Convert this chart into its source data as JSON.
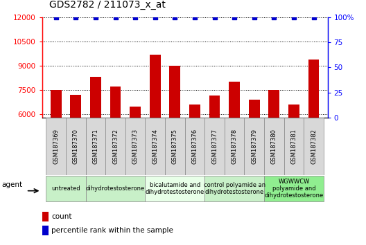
{
  "title": "GDS2782 / 211073_x_at",
  "samples": [
    "GSM187369",
    "GSM187370",
    "GSM187371",
    "GSM187372",
    "GSM187373",
    "GSM187374",
    "GSM187375",
    "GSM187376",
    "GSM187377",
    "GSM187378",
    "GSM187379",
    "GSM187380",
    "GSM187381",
    "GSM187382"
  ],
  "counts": [
    7500,
    7200,
    8300,
    7700,
    6500,
    9700,
    9000,
    6600,
    7150,
    8000,
    6900,
    7500,
    6600,
    9400
  ],
  "percentiles": [
    100,
    100,
    100,
    100,
    100,
    100,
    100,
    100,
    100,
    100,
    100,
    100,
    100,
    100
  ],
  "bar_color": "#cc0000",
  "dot_color": "#0000cc",
  "ylim_left": [
    5800,
    12000
  ],
  "ylim_right": [
    0,
    100
  ],
  "yticks_left": [
    6000,
    7500,
    9000,
    10500,
    12000
  ],
  "yticks_right": [
    0,
    25,
    50,
    75,
    100
  ],
  "ytick_labels_right": [
    "0",
    "25",
    "50",
    "75",
    "100%"
  ],
  "groups": [
    {
      "label": "untreated",
      "indices": [
        0,
        1
      ],
      "color": "#c8f0c8"
    },
    {
      "label": "dihydrotestosterone",
      "indices": [
        2,
        3,
        4
      ],
      "color": "#c8f0c8"
    },
    {
      "label": "bicalutamide and\ndihydrotestosterone",
      "indices": [
        5,
        6,
        7
      ],
      "color": "#e8ffe8"
    },
    {
      "label": "control polyamide an\ndihydrotestosterone",
      "indices": [
        8,
        9,
        10
      ],
      "color": "#c8f0c8"
    },
    {
      "label": "WGWWCW\npolyamide and\ndihydrotestosterone",
      "indices": [
        11,
        12,
        13
      ],
      "color": "#90ee90"
    }
  ],
  "agent_label": "agent",
  "legend_count_label": "count",
  "legend_pct_label": "percentile rank within the sample",
  "background_color": "#ffffff",
  "title_fontsize": 10,
  "tick_fontsize": 7.5,
  "bar_width": 0.55
}
